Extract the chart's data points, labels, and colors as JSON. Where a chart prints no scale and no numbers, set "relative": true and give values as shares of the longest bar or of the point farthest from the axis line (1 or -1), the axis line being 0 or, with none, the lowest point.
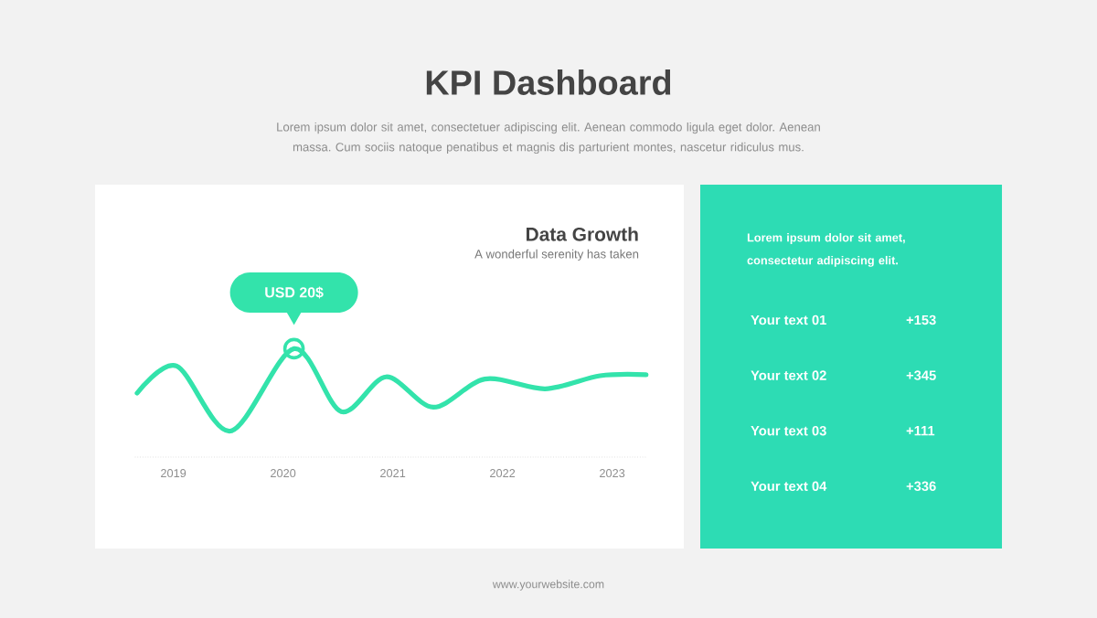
{
  "chart_data": [
    {
      "type": "other",
      "title": "KPI Dashboard",
      "subtitle": "Lorem ipsum dolor sit amet, consectetuer adipiscing elit. Aenean commodo ligula eget dolor. Aenean massa. Cum sociis natoque penatibus et magnis dis parturient montes, nascetur ridiculus mus.",
      "annotations": [
        "www.yourwebsite.com"
      ]
    },
    {
      "type": "line",
      "title": "Data Growth",
      "subtitle": "A wonderful serenity has taken",
      "relative": true,
      "color": "#33e3ab",
      "x": [
        2018.67,
        2019.03,
        2019.52,
        2020.1,
        2020.53,
        2020.94,
        2021.37,
        2021.84,
        2022.39,
        2022.89,
        2023.31
      ],
      "values": [
        0.59,
        0.84,
        0.24,
        1.0,
        0.42,
        0.74,
        0.46,
        0.72,
        0.63,
        0.75,
        0.76
      ],
      "xlim": [
        2018.65,
        2023.32
      ],
      "xticks": [
        2019,
        2020,
        2021,
        2022,
        2023
      ],
      "tick_labels": "x",
      "annotations": [
        "USD 20$"
      ]
    },
    {
      "type": "other",
      "annotations": [
        "Lorem ipsum dolor sit amet, consectetur adipiscing elit.",
        "Your text 01",
        "+153",
        "Your text 02",
        "+345",
        "Your text 03",
        "+111",
        "Your text 04",
        "+336"
      ]
    }
  ]
}
